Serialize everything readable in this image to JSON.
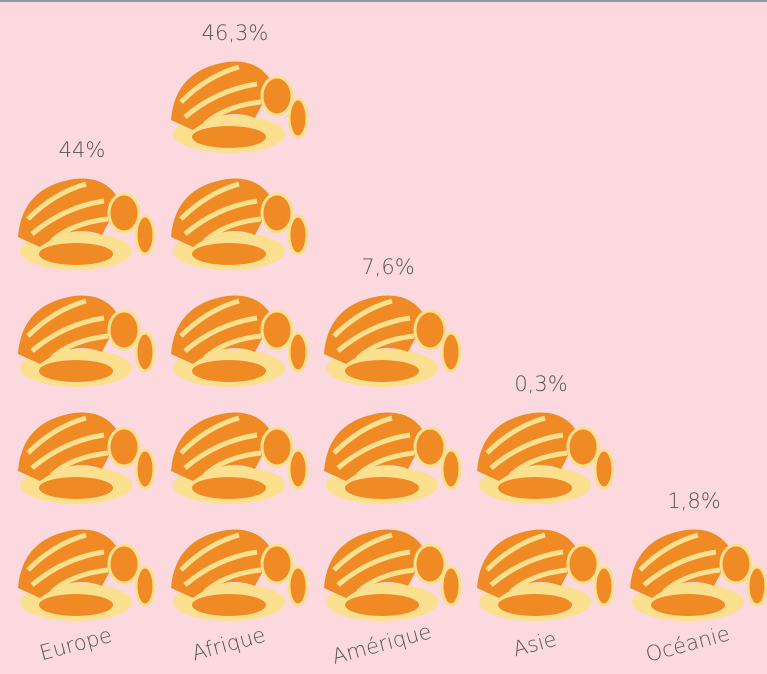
{
  "chart_data": {
    "type": "pictogram",
    "categories": [
      "Europe",
      "Afrique",
      "Amérique",
      "Asie",
      "Océanie"
    ],
    "values": [
      44,
      46.3,
      7.6,
      0.3,
      1.8
    ],
    "value_labels": [
      "44%",
      "46,3%",
      "7,6%",
      "0,3%",
      "1,8%"
    ],
    "icons": [
      4,
      5,
      3,
      2,
      1
    ],
    "color": "#f08a24"
  }
}
